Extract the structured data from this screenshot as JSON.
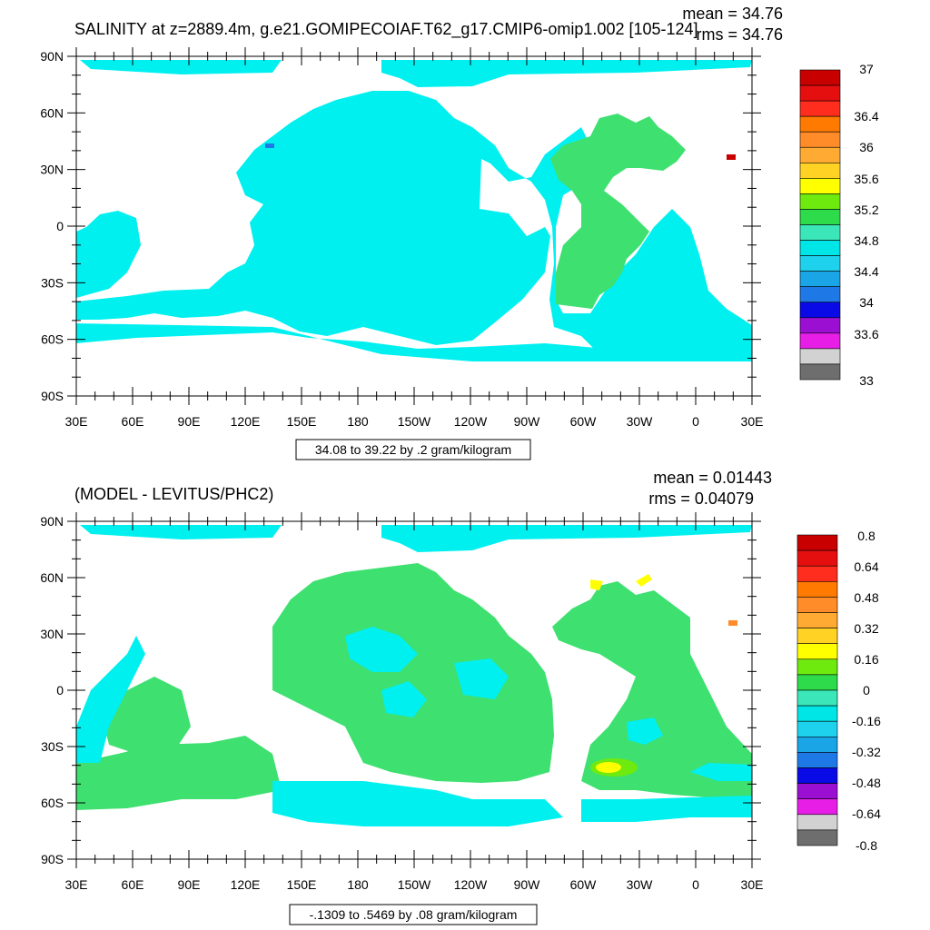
{
  "top": {
    "title": "SALINITY at z=2889.4m, g.e21.GOMIPECOIAF.T62_g17.CMIP6-omip1.002 [105-124]",
    "mean_text": "mean = 34.76",
    "rms_text": "rms = 34.76",
    "range_text": "34.08 to 39.22 by .2 gram/kilogram",
    "colorbar": {
      "colors": [
        "#6e6e6e",
        "#d2d2d2",
        "#e61ee6",
        "#9b0fd2",
        "#0a0ae6",
        "#1e78e6",
        "#19a5e6",
        "#1ed2ee",
        "#00e6e6",
        "#3be6b9",
        "#2edc4b",
        "#6eea0f",
        "#ffff00",
        "#ffd224",
        "#ffaa32",
        "#ff8c28",
        "#ff7a00",
        "#ff2d1e",
        "#e60f0f",
        "#c80000"
      ],
      "labels": [
        "37",
        "36.4",
        "36",
        "35.6",
        "35.2",
        "34.8",
        "34.4",
        "34",
        "33.6",
        "33"
      ]
    }
  },
  "bottom": {
    "title": "(MODEL - LEVITUS/PHC2)",
    "mean_text": "mean = 0.01443",
    "rms_text": "rms = 0.04079",
    "range_text": "-.1309 to .5469 by .08 gram/kilogram",
    "colorbar": {
      "colors": [
        "#6e6e6e",
        "#d2d2d2",
        "#e61ee6",
        "#9b0fd2",
        "#0a0ae6",
        "#1e78e6",
        "#19a5e6",
        "#1ed2ee",
        "#00e6e6",
        "#3be6b9",
        "#2edc4b",
        "#6eea0f",
        "#ffff00",
        "#ffd224",
        "#ffaa32",
        "#ff8c28",
        "#ff7a00",
        "#ff2d1e",
        "#e60f0f",
        "#c80000"
      ],
      "labels": [
        "0.8",
        "0.64",
        "0.48",
        "0.32",
        "0.16",
        "0",
        "-0.16",
        "-0.32",
        "-0.48",
        "-0.64",
        "-0.8"
      ]
    }
  },
  "axes": {
    "lat_labels": [
      "90N",
      "60N",
      "30N",
      "0",
      "30S",
      "60S",
      "90S"
    ],
    "lon_labels": [
      "30E",
      "60E",
      "90E",
      "120E",
      "150E",
      "180",
      "150W",
      "120W",
      "90W",
      "60W",
      "30W",
      "0",
      "30E"
    ]
  }
}
